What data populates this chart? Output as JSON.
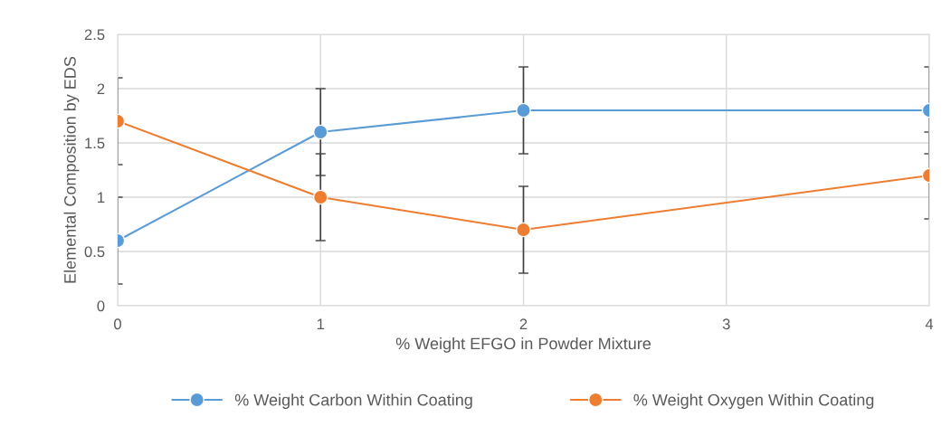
{
  "chart_data": {
    "type": "line",
    "xlabel": "% Weight EFGO in Powder Mixture",
    "ylabel": "Elemental Composition by EDS",
    "x": [
      0,
      1,
      2,
      4
    ],
    "series": [
      {
        "name": "% Weight Carbon Within Coating",
        "color": "#5b9bd5",
        "values": [
          0.6,
          1.6,
          1.8,
          1.8
        ],
        "errors": [
          0.4,
          0.4,
          0.4,
          0.4
        ]
      },
      {
        "name": "% Weight Oxygen Within Coating",
        "color": "#ed7d31",
        "values": [
          1.7,
          1.0,
          0.7,
          1.2
        ],
        "errors": [
          0.4,
          0.4,
          0.4,
          0.4
        ]
      }
    ],
    "xlim": [
      0,
      4
    ],
    "xticks": [
      0,
      1,
      2,
      3,
      4
    ],
    "ylim": [
      0,
      2.5
    ],
    "yticks": [
      0,
      0.5,
      1,
      1.5,
      2,
      2.5
    ],
    "grid": true,
    "legend": "bottom",
    "marker": "circle",
    "line_style": "solid"
  }
}
